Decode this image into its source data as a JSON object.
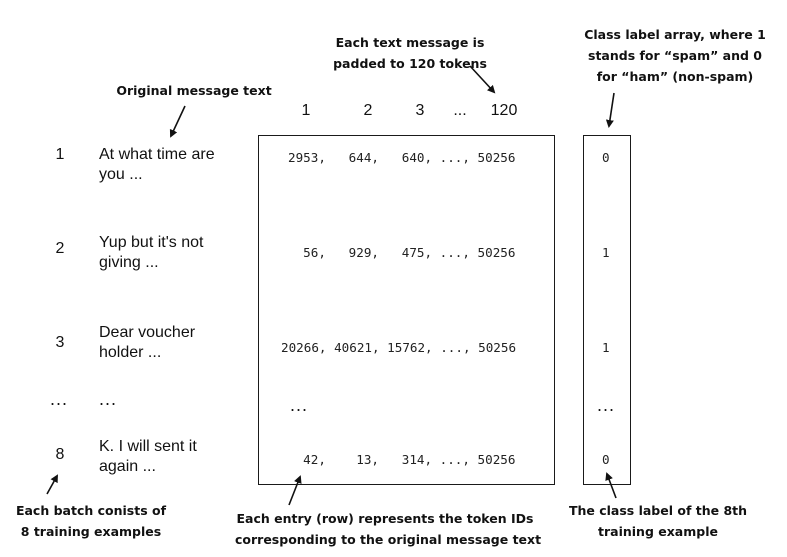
{
  "annotations": {
    "padded_note": "Each text message is\npadded to 120 tokens",
    "class_label_note": "Class label array, where 1\nstands for “spam” and 0\nfor “ham” (non-spam)",
    "original_text_note": "Original message text",
    "batch_note": "Each batch conists of\n8 training examples",
    "row_note": "Each entry (row) represents the token IDs\ncorresponding to the original message text",
    "eighth_label_note": "The class label of the 8th\ntraining example"
  },
  "column_headers": [
    "1",
    "2",
    "3",
    "...",
    "120"
  ],
  "rows": [
    {
      "index": "1",
      "message": "At what time are\nyou ...",
      "tokens": "2953,   644,   640, ..., 50256",
      "label": "0"
    },
    {
      "index": "2",
      "message": "Yup but it's not\ngiving ...",
      "tokens": "  56,   929,   475, ..., 50256",
      "label": "1"
    },
    {
      "index": "3",
      "message": "Dear voucher\nholder ...",
      "tokens": "20266, 40621, 15762, ..., 50256",
      "label": "1"
    },
    {
      "index": "...",
      "message": "...",
      "tokens": "...",
      "label": "..."
    },
    {
      "index": "8",
      "message": "K. I will sent it\nagain ...",
      "tokens": "  42,    13,   314, ..., 50256",
      "label": "0"
    }
  ]
}
